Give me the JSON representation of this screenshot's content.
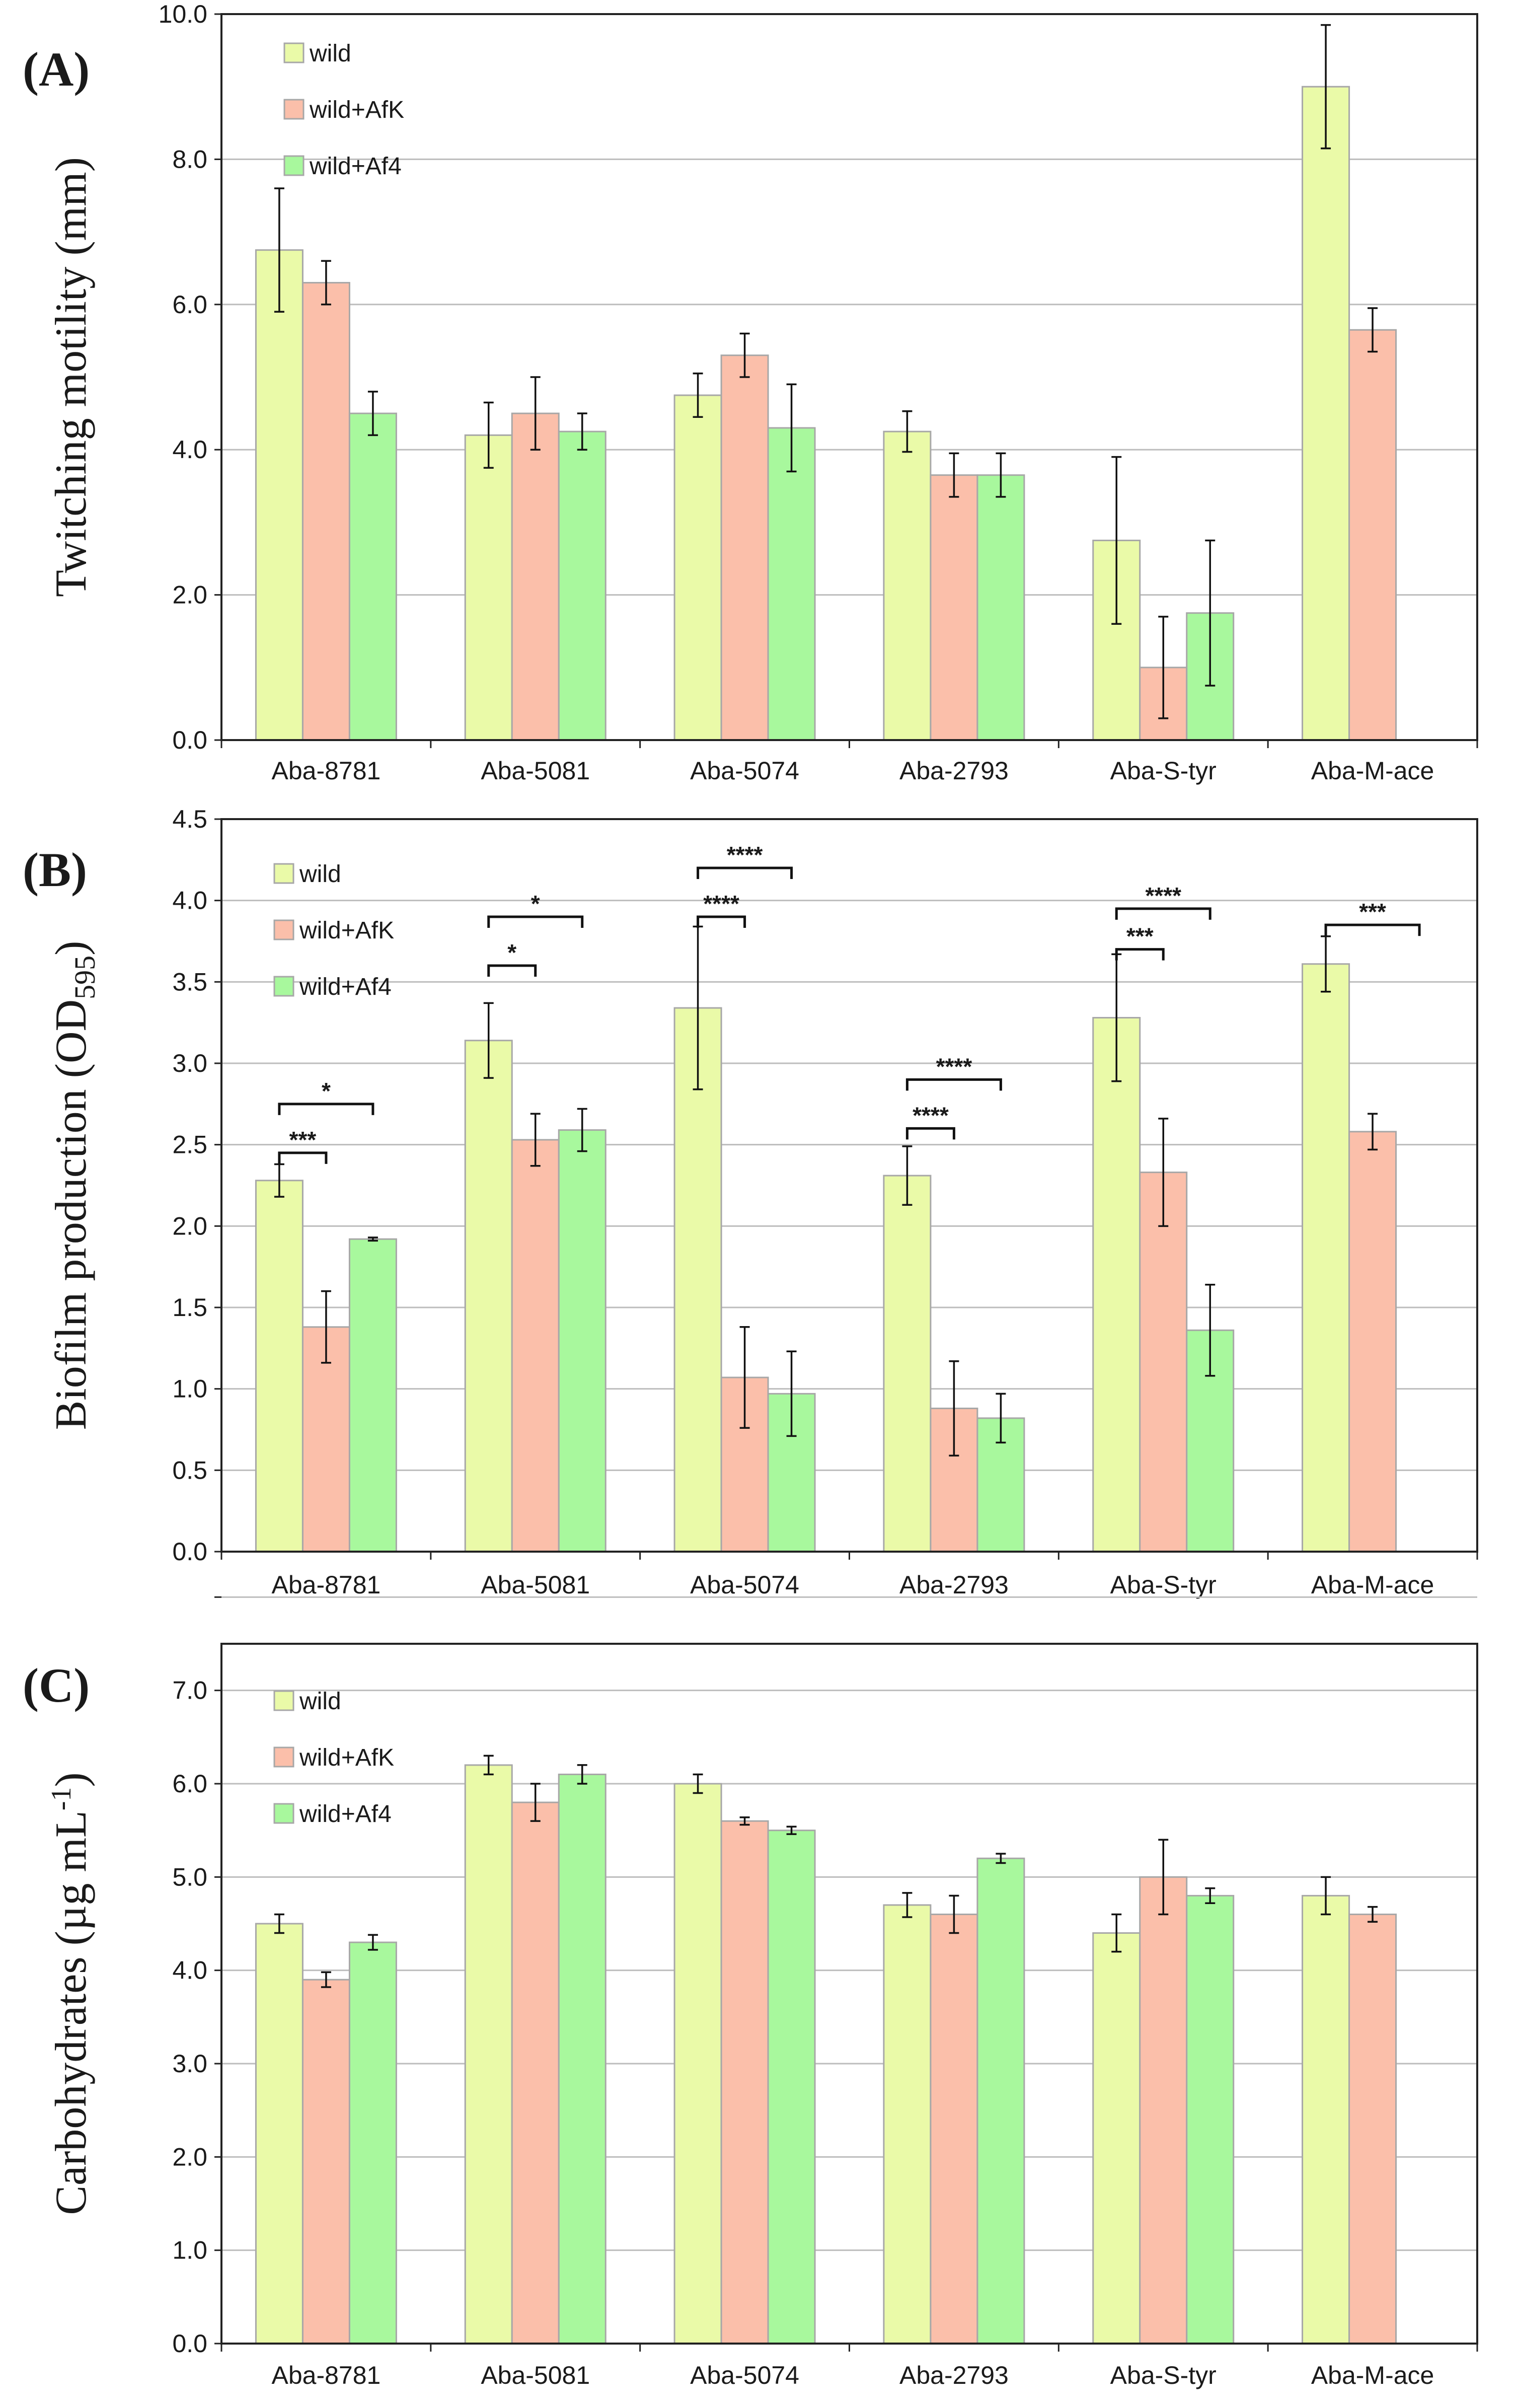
{
  "colors": {
    "wild": "#eafaa8",
    "wild_afk": "#fbbfaa",
    "wild_af4": "#a8f89d",
    "bar_edge": "#a7a7a7",
    "grid": "#bdbdbd",
    "axis": "#222222"
  },
  "chart_data": [
    {
      "type": "bar",
      "panel_label": "(A)",
      "ylabel": "Twitching motility (mm)",
      "ylim": [
        0,
        10
      ],
      "ytick_step": 2,
      "yticks": [
        "0.0",
        "2.0",
        "4.0",
        "6.0",
        "8.0",
        "10.0"
      ],
      "grid": true,
      "legend_position": "top-left",
      "categories": [
        "Aba-8781",
        "Aba-5081",
        "Aba-5074",
        "Aba-2793",
        "Aba-S-tyr",
        "Aba-M-ace"
      ],
      "series": [
        {
          "name": "wild",
          "color_key": "wild",
          "values": [
            6.75,
            4.2,
            4.75,
            4.25,
            2.75,
            9.0
          ],
          "errors": [
            0.85,
            0.45,
            0.3,
            0.28,
            1.15,
            0.85
          ]
        },
        {
          "name": "wild+AfK",
          "color_key": "wild_afk",
          "values": [
            6.3,
            4.5,
            5.3,
            3.65,
            1.0,
            5.65
          ],
          "errors": [
            0.3,
            0.5,
            0.3,
            0.3,
            0.7,
            0.3
          ]
        },
        {
          "name": "wild+Af4",
          "color_key": "wild_af4",
          "values": [
            4.5,
            4.25,
            4.3,
            3.65,
            1.75,
            null
          ],
          "errors": [
            0.3,
            0.25,
            0.6,
            0.3,
            1.0,
            null
          ]
        }
      ],
      "annotations": []
    },
    {
      "type": "bar",
      "panel_label": "(B)",
      "ylabel_main": "Biofilm production (OD",
      "ylabel_sub": "595",
      "ylabel_close": ")",
      "ylim": [
        0,
        4.5
      ],
      "ytick_step": 0.5,
      "yticks": [
        "0.0",
        "0.5",
        "1.0",
        "1.5",
        "2.0",
        "2.5",
        "3.0",
        "3.5",
        "4.0",
        "4.5"
      ],
      "grid": true,
      "legend_position": "top-left",
      "categories": [
        "Aba-8781",
        "Aba-5081",
        "Aba-5074",
        "Aba-2793",
        "Aba-S-tyr",
        "Aba-M-ace"
      ],
      "series": [
        {
          "name": "wild",
          "color_key": "wild",
          "values": [
            2.28,
            3.14,
            3.34,
            2.31,
            3.28,
            3.61
          ],
          "errors": [
            0.1,
            0.23,
            0.5,
            0.18,
            0.39,
            0.17
          ]
        },
        {
          "name": "wild+AfK",
          "color_key": "wild_afk",
          "values": [
            1.38,
            2.53,
            1.07,
            0.88,
            2.33,
            2.58
          ],
          "errors": [
            0.22,
            0.16,
            0.31,
            0.29,
            0.33,
            0.11
          ]
        },
        {
          "name": "wild+Af4",
          "color_key": "wild_af4",
          "values": [
            1.92,
            2.59,
            0.97,
            0.82,
            1.36,
            null
          ],
          "errors": [
            0.01,
            0.13,
            0.26,
            0.15,
            0.28,
            null
          ]
        }
      ],
      "annotations": [
        {
          "category": 0,
          "to_series": 1,
          "level": 2.45,
          "label": "***"
        },
        {
          "category": 0,
          "to_series": 2,
          "level": 2.75,
          "label": "*"
        },
        {
          "category": 1,
          "to_series": 1,
          "level": 3.6,
          "label": "*"
        },
        {
          "category": 1,
          "to_series": 2,
          "level": 3.9,
          "label": "*"
        },
        {
          "category": 2,
          "to_series": 1,
          "level": 3.9,
          "label": "****"
        },
        {
          "category": 2,
          "to_series": 2,
          "level": 4.2,
          "label": "****"
        },
        {
          "category": 3,
          "to_series": 1,
          "level": 2.6,
          "label": "****"
        },
        {
          "category": 3,
          "to_series": 2,
          "level": 2.9,
          "label": "****"
        },
        {
          "category": 4,
          "to_series": 1,
          "level": 3.7,
          "label": "***"
        },
        {
          "category": 4,
          "to_series": 2,
          "level": 3.95,
          "label": "****"
        },
        {
          "category": 5,
          "to_series": 2,
          "level": 3.85,
          "label": "***"
        }
      ]
    },
    {
      "type": "bar",
      "panel_label": "(C)",
      "ylabel_main": "Carbohydrates (µg mL",
      "ylabel_sup": "-1",
      "ylabel_close": ")",
      "ylim": [
        0,
        7.5
      ],
      "ytick_step": 1,
      "yticks": [
        "0.0",
        "1.0",
        "2.0",
        "3.0",
        "4.0",
        "5.0",
        "6.0",
        "7.0"
      ],
      "grid": true,
      "legend_position": "top-left",
      "categories": [
        "Aba-8781",
        "Aba-5081",
        "Aba-5074",
        "Aba-2793",
        "Aba-S-tyr",
        "Aba-M-ace"
      ],
      "series": [
        {
          "name": "wild",
          "color_key": "wild",
          "values": [
            4.5,
            6.2,
            6.0,
            4.7,
            4.4,
            4.8
          ],
          "errors": [
            0.1,
            0.1,
            0.1,
            0.13,
            0.2,
            0.2
          ]
        },
        {
          "name": "wild+AfK",
          "color_key": "wild_afk",
          "values": [
            3.9,
            5.8,
            5.6,
            4.6,
            5.0,
            4.6
          ],
          "errors": [
            0.08,
            0.2,
            0.04,
            0.2,
            0.4,
            0.08
          ]
        },
        {
          "name": "wild+Af4",
          "color_key": "wild_af4",
          "values": [
            4.3,
            6.1,
            5.5,
            5.2,
            4.8,
            null
          ],
          "errors": [
            0.08,
            0.1,
            0.04,
            0.05,
            0.08,
            null
          ]
        }
      ],
      "annotations": []
    }
  ]
}
